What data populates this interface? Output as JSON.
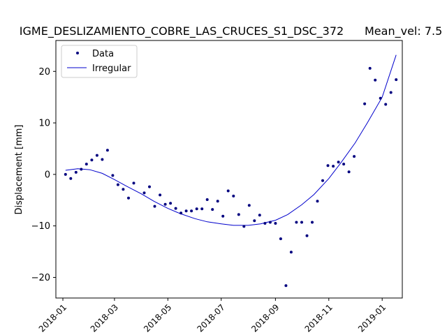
{
  "chart_data": {
    "type": "scatter",
    "title": "IGME_DESLIZAMIENTO_COBRE_LAS_CRUCES_S1_DSC_372",
    "subtitle": "Mean_vel: 7.5",
    "xlabel": "",
    "ylabel": "Displacement [mm]",
    "xlim": [
      "2017-12-24",
      "2019-01-24"
    ],
    "ylim": [
      -24,
      26
    ],
    "x_ticks": [
      "2018-01",
      "2018-03",
      "2018-05",
      "2018-07",
      "2018-09",
      "2018-11",
      "2019-01"
    ],
    "y_ticks": [
      -20,
      -10,
      0,
      10,
      20
    ],
    "grid": false,
    "legend": {
      "placement": "top-left",
      "entries": [
        "Data",
        "Irregular"
      ]
    },
    "series": [
      {
        "name": "Data",
        "marker": "point",
        "color": "#00007f",
        "x": [
          "2018-01-04",
          "2018-01-10",
          "2018-01-16",
          "2018-01-22",
          "2018-01-28",
          "2018-02-03",
          "2018-02-09",
          "2018-02-15",
          "2018-02-21",
          "2018-02-27",
          "2018-03-05",
          "2018-03-11",
          "2018-03-17",
          "2018-03-23",
          "2018-04-04",
          "2018-04-10",
          "2018-04-16",
          "2018-04-22",
          "2018-04-28",
          "2018-05-04",
          "2018-05-10",
          "2018-05-16",
          "2018-05-22",
          "2018-05-28",
          "2018-06-03",
          "2018-06-09",
          "2018-06-15",
          "2018-06-21",
          "2018-06-27",
          "2018-07-03",
          "2018-07-09",
          "2018-07-15",
          "2018-07-21",
          "2018-07-27",
          "2018-08-02",
          "2018-08-08",
          "2018-08-14",
          "2018-08-20",
          "2018-08-26",
          "2018-09-01",
          "2018-09-07",
          "2018-09-13",
          "2018-09-19",
          "2018-09-25",
          "2018-10-01",
          "2018-10-07",
          "2018-10-13",
          "2018-10-19",
          "2018-10-25",
          "2018-10-31",
          "2018-11-06",
          "2018-11-12",
          "2018-11-18",
          "2018-11-24",
          "2018-11-30",
          "2018-12-12",
          "2018-12-18",
          "2018-12-24",
          "2018-12-30",
          "2019-01-05",
          "2019-01-11",
          "2019-01-17"
        ],
        "y": [
          0.0,
          -0.8,
          0.4,
          1.0,
          2.0,
          2.8,
          3.7,
          2.9,
          4.7,
          -0.2,
          -2.0,
          -2.9,
          -4.6,
          -1.7,
          -3.6,
          -2.4,
          -6.2,
          -4.0,
          -5.8,
          -5.6,
          -6.6,
          -7.5,
          -7.1,
          -7.1,
          -6.7,
          -6.7,
          -4.9,
          -6.8,
          -5.2,
          -8.1,
          -3.2,
          -4.2,
          -7.8,
          -10.1,
          -6.0,
          -9.0,
          -7.9,
          -9.5,
          -9.3,
          -9.5,
          -12.5,
          -21.6,
          -15.1,
          -9.3,
          -9.3,
          -11.9,
          -9.3,
          -5.2,
          -1.2,
          1.7,
          1.6,
          2.4,
          2.0,
          0.5,
          3.5,
          13.7,
          20.6,
          18.3,
          14.8,
          13.6,
          15.9,
          18.4
        ]
      },
      {
        "name": "Irregular",
        "marker": "line",
        "color": "#0000cc",
        "x": [
          "2018-01-04",
          "2018-01-18",
          "2018-02-01",
          "2018-02-15",
          "2018-03-01",
          "2018-03-15",
          "2018-04-01",
          "2018-04-15",
          "2018-05-01",
          "2018-05-15",
          "2018-06-01",
          "2018-06-15",
          "2018-07-01",
          "2018-07-15",
          "2018-08-01",
          "2018-08-15",
          "2018-09-01",
          "2018-09-15",
          "2018-10-01",
          "2018-10-15",
          "2018-11-01",
          "2018-11-15",
          "2018-12-01",
          "2018-12-15",
          "2019-01-01",
          "2019-01-17"
        ],
        "y": [
          0.8,
          1.1,
          0.9,
          0.2,
          -1.0,
          -2.3,
          -3.8,
          -5.2,
          -6.6,
          -7.6,
          -8.6,
          -9.2,
          -9.6,
          -9.9,
          -9.9,
          -9.6,
          -8.9,
          -7.8,
          -5.9,
          -3.9,
          -0.8,
          2.3,
          6.1,
          10.0,
          15.0,
          23.2
        ]
      }
    ]
  }
}
